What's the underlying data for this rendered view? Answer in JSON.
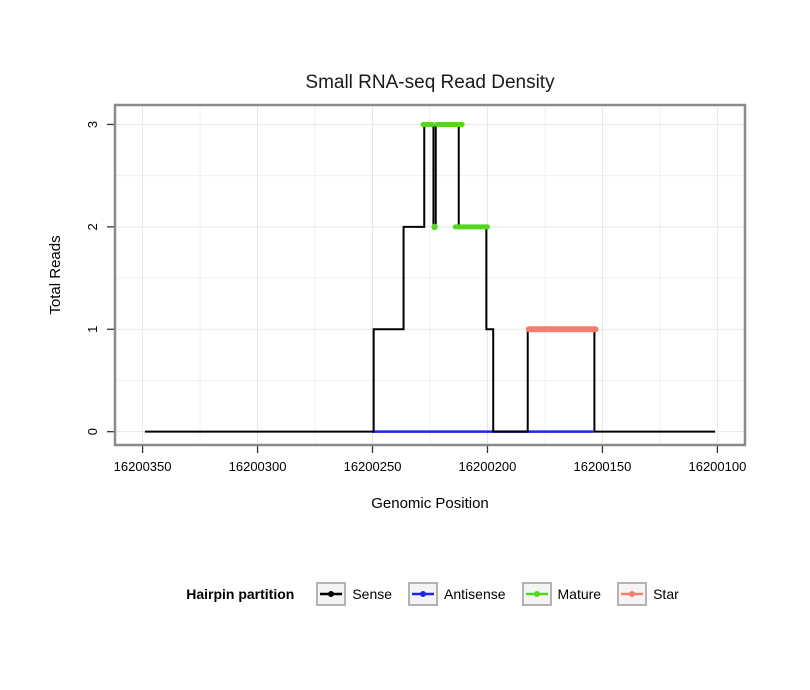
{
  "title": "Small RNA-seq Read Density",
  "axes": {
    "xlabel": "Genomic Position",
    "ylabel": "Total Reads",
    "x_ticks": [
      16200350,
      16200300,
      16200250,
      16200200,
      16200150,
      16200100
    ],
    "y_ticks": [
      0,
      1,
      2,
      3
    ]
  },
  "chart_data": {
    "type": "line",
    "title": "Small RNA-seq Read Density",
    "xlabel": "Genomic Position",
    "ylabel": "Total Reads",
    "x_axis_reversed": true,
    "x_range": [
      16200362,
      16200088
    ],
    "y_range": [
      -0.13,
      3.19
    ],
    "grid": true,
    "legend_position": "bottom",
    "series": [
      {
        "name": "Antisense",
        "color": "#2222ee",
        "width": 2.5,
        "type": "line",
        "points": [
          [
            16200250,
            0
          ],
          [
            16200154,
            0
          ]
        ]
      },
      {
        "name": "Sense",
        "color": "#000000",
        "width": 2,
        "type": "step",
        "segments": [
          [
            16200349,
            16200250,
            0
          ],
          [
            16200249,
            16200237,
            1
          ],
          [
            16200236,
            16200228,
            2
          ],
          [
            16200227,
            16200224,
            3
          ],
          [
            16200223,
            16200223,
            2
          ],
          [
            16200222,
            16200213,
            3
          ],
          [
            16200212,
            16200201,
            2
          ],
          [
            16200200,
            16200198,
            1
          ],
          [
            16200197,
            16200183,
            0
          ],
          [
            16200182,
            16200154,
            1
          ],
          [
            16200153,
            16200101,
            0
          ]
        ]
      },
      {
        "name": "Mature",
        "color": "#53d71f",
        "width": 5,
        "type": "segments",
        "segments": [
          [
            16200228,
            16200224,
            3
          ],
          [
            16200222,
            16200211,
            3
          ],
          [
            16200223,
            16200223,
            2
          ],
          [
            16200214,
            16200200,
            2
          ]
        ]
      },
      {
        "name": "Star",
        "color": "#f57d6e",
        "width": 6,
        "type": "segments",
        "segments": [
          [
            16200182,
            16200153,
            1
          ]
        ]
      }
    ]
  },
  "legend": {
    "label": "Hairpin partition",
    "entries": [
      {
        "name": "Sense",
        "color": "#000000"
      },
      {
        "name": "Antisense",
        "color": "#2222ee"
      },
      {
        "name": "Mature",
        "color": "#53d71f"
      },
      {
        "name": "Star",
        "color": "#f57d6e"
      }
    ]
  }
}
